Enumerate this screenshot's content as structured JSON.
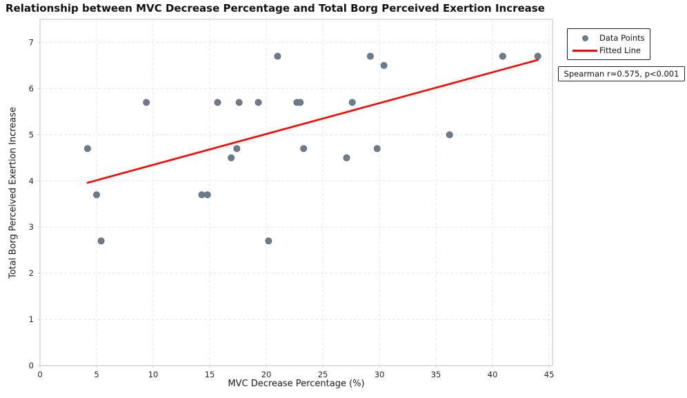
{
  "title": "Relationship between MVC Decrease Percentage and Total Borg Perceived Exertion Increase",
  "annotation": "Spearman r=0.575, p<0.001",
  "legend": {
    "data_points_label": "Data Points",
    "fitted_line_label": "Fitted Line"
  },
  "colors": {
    "marker_fill": "#6e7b89",
    "marker_edge": "#5d6a77",
    "fitted_line": "#ff0000",
    "grid": "#e4e4e4",
    "spine": "#c9ccce",
    "tick_text": "#262626"
  },
  "chart_data": {
    "type": "scatter",
    "title": "Relationship between MVC Decrease Percentage and Total Borg Perceived Exertion Increase",
    "xlabel": "MVC Decrease Percentage (%)",
    "ylabel": "Total Borg Perceived Exertion Increase",
    "xlim": [
      0,
      45.3
    ],
    "ylim": [
      0,
      7.5
    ],
    "xticks": [
      0,
      5,
      10,
      15,
      20,
      25,
      30,
      35,
      40,
      45
    ],
    "yticks": [
      0,
      1,
      2,
      3,
      4,
      5,
      6,
      7
    ],
    "grid": true,
    "legend_position": "outside-top-right",
    "stats_annotation": "Spearman r=0.575, p<0.001",
    "series": [
      {
        "name": "Data Points",
        "type": "scatter",
        "points": [
          [
            4.2,
            4.7
          ],
          [
            5.0,
            3.7
          ],
          [
            5.4,
            2.7
          ],
          [
            9.4,
            5.7
          ],
          [
            14.3,
            3.7
          ],
          [
            14.8,
            3.7
          ],
          [
            15.7,
            5.7
          ],
          [
            16.9,
            4.5
          ],
          [
            17.4,
            4.7
          ],
          [
            17.6,
            5.7
          ],
          [
            19.3,
            5.7
          ],
          [
            20.2,
            2.7
          ],
          [
            21.0,
            6.7
          ],
          [
            22.7,
            5.7
          ],
          [
            23.0,
            5.7
          ],
          [
            23.3,
            4.7
          ],
          [
            27.1,
            4.5
          ],
          [
            27.6,
            5.7
          ],
          [
            29.2,
            6.7
          ],
          [
            29.8,
            4.7
          ],
          [
            30.4,
            6.5
          ],
          [
            36.2,
            5.0
          ],
          [
            40.9,
            6.7
          ],
          [
            44.0,
            6.7
          ]
        ]
      },
      {
        "name": "Fitted Line",
        "type": "line",
        "points": [
          [
            4.2,
            3.96
          ],
          [
            44.0,
            6.62
          ]
        ]
      }
    ]
  }
}
